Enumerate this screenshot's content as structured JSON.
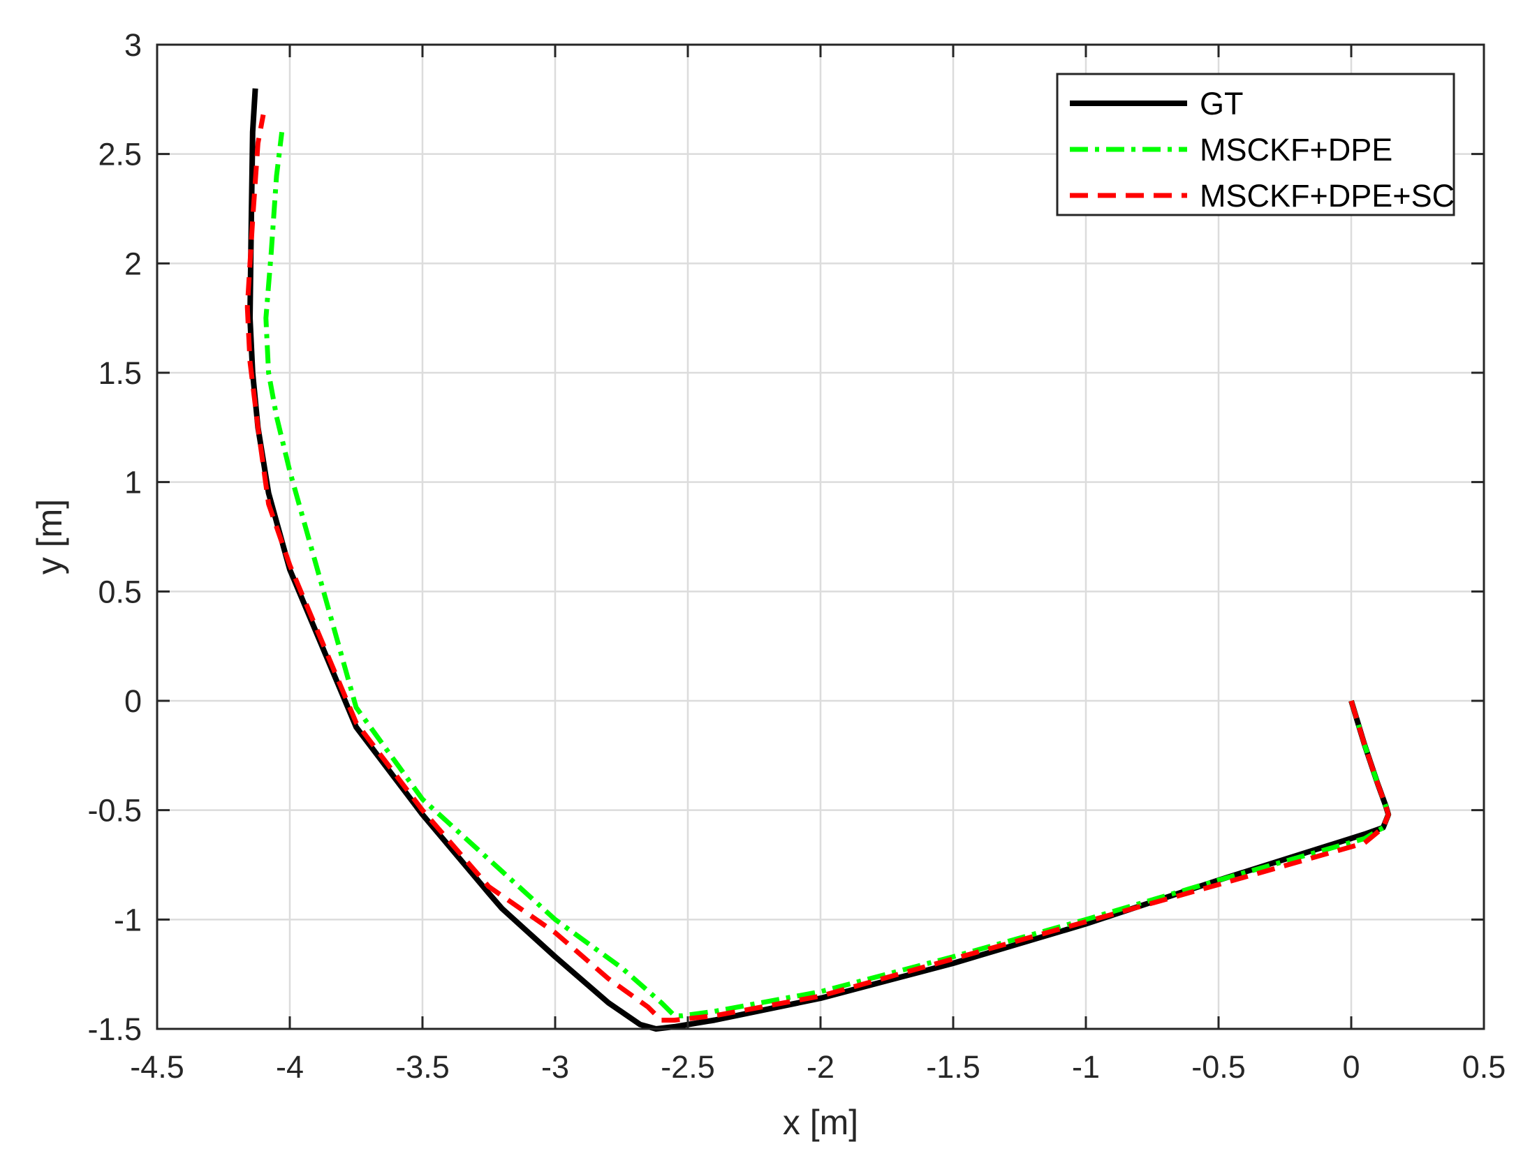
{
  "chart_data": {
    "type": "line",
    "title": "",
    "xlabel": "x [m]",
    "ylabel": "y [m]",
    "xlim": [
      -4.5,
      0.5
    ],
    "ylim": [
      -1.5,
      3
    ],
    "xticks": [
      -4.5,
      -4,
      -3.5,
      -3,
      -2.5,
      -2,
      -1.5,
      -1,
      -0.5,
      0,
      0.5
    ],
    "xtick_labels": [
      "-4.5",
      "-4",
      "-3.5",
      "-3",
      "-2.5",
      "-2",
      "-1.5",
      "-1",
      "-0.5",
      "0",
      "0.5"
    ],
    "yticks": [
      -1.5,
      -1,
      -0.5,
      0,
      0.5,
      1,
      1.5,
      2,
      2.5,
      3
    ],
    "ytick_labels": [
      "-1.5",
      "-1",
      "-0.5",
      "0",
      "0.5",
      "1",
      "1.5",
      "2",
      "2.5",
      "3"
    ],
    "grid": true,
    "legend_position": "top-right",
    "series": [
      {
        "name": "GT",
        "color": "#000000",
        "style": "solid",
        "x": [
          0.0,
          0.05,
          0.1,
          0.13,
          0.14,
          0.12,
          0.05,
          -0.5,
          -1.0,
          -1.5,
          -2.0,
          -2.4,
          -2.55,
          -2.62,
          -2.68,
          -2.8,
          -3.0,
          -3.2,
          -3.25,
          -3.5,
          -3.75,
          -4.0,
          -4.08,
          -4.12,
          -4.14,
          -4.15,
          -4.145,
          -4.14,
          -4.13
        ],
        "y": [
          0.0,
          -0.2,
          -0.38,
          -0.48,
          -0.52,
          -0.58,
          -0.61,
          -0.82,
          -1.02,
          -1.2,
          -1.36,
          -1.46,
          -1.49,
          -1.5,
          -1.48,
          -1.38,
          -1.17,
          -0.95,
          -0.88,
          -0.52,
          -0.12,
          0.6,
          0.95,
          1.25,
          1.5,
          1.75,
          2.2,
          2.6,
          2.8
        ]
      },
      {
        "name": "MSCKF+DPE",
        "color": "#00ff00",
        "style": "dash-dot",
        "x": [
          0.0,
          0.05,
          0.1,
          0.13,
          0.14,
          0.12,
          0.05,
          -0.5,
          -1.0,
          -1.5,
          -2.0,
          -2.4,
          -2.52,
          -2.55,
          -2.6,
          -2.75,
          -3.0,
          -3.2,
          -3.5,
          -3.75,
          -4.0,
          -4.05,
          -4.08,
          -4.09,
          -4.07,
          -4.05,
          -4.03
        ],
        "y": [
          0.0,
          -0.2,
          -0.38,
          -0.48,
          -0.52,
          -0.58,
          -0.63,
          -0.82,
          -1.0,
          -1.17,
          -1.33,
          -1.42,
          -1.44,
          -1.44,
          -1.38,
          -1.22,
          -1.0,
          -0.78,
          -0.45,
          -0.03,
          1.05,
          1.3,
          1.5,
          1.75,
          2.05,
          2.4,
          2.6
        ]
      },
      {
        "name": "MSCKF+DPE+SC",
        "color": "#ff0000",
        "style": "dashed",
        "x": [
          0.0,
          0.05,
          0.1,
          0.13,
          0.14,
          0.12,
          0.05,
          -0.5,
          -1.0,
          -1.5,
          -2.0,
          -2.4,
          -2.55,
          -2.6,
          -2.65,
          -2.8,
          -3.0,
          -3.25,
          -3.5,
          -3.75,
          -4.0,
          -4.08,
          -4.12,
          -4.15,
          -4.16,
          -4.14,
          -4.12,
          -4.1
        ],
        "y": [
          0.0,
          -0.2,
          -0.38,
          -0.48,
          -0.52,
          -0.58,
          -0.65,
          -0.84,
          -1.01,
          -1.18,
          -1.35,
          -1.44,
          -1.46,
          -1.46,
          -1.4,
          -1.27,
          -1.06,
          -0.85,
          -0.5,
          -0.1,
          0.62,
          0.9,
          1.25,
          1.55,
          1.8,
          2.2,
          2.55,
          2.68
        ]
      }
    ]
  }
}
